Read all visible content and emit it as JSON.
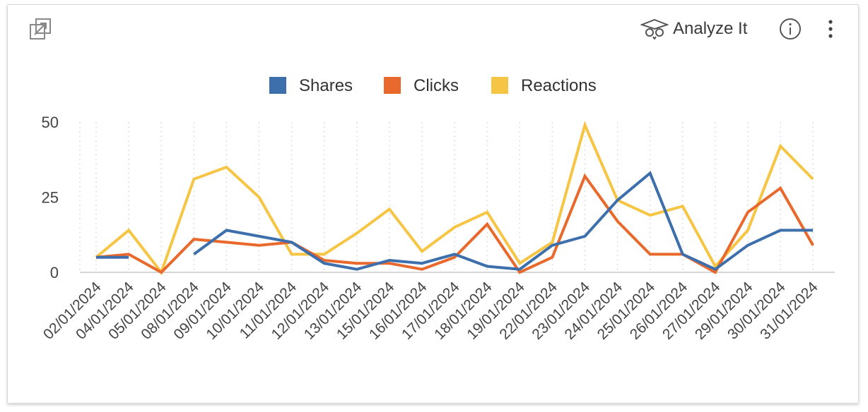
{
  "toolbar": {
    "expand_icon": "expand-icon",
    "analyze_label": "Analyze It",
    "analyze_icon": "owl-graduation-icon",
    "info_icon": "info-icon",
    "more_icon": "kebab-menu-icon"
  },
  "colors": {
    "shares": "#3d6fad",
    "clicks": "#e8692b",
    "reactions": "#f6c544",
    "axis": "#c8c8c8",
    "grid": "#d6d6d6"
  },
  "chart_data": {
    "type": "line",
    "title": "",
    "xlabel": "",
    "ylabel": "",
    "ylim": [
      0,
      50
    ],
    "yticks": [
      0,
      25,
      50
    ],
    "grid": "vertical dotted",
    "legend": "top-center",
    "categories": [
      "02/01/2024",
      "04/01/2024",
      "05/01/2024",
      "08/01/2024",
      "09/01/2024",
      "10/01/2024",
      "11/01/2024",
      "12/01/2024",
      "13/01/2024",
      "15/01/2024",
      "16/01/2024",
      "17/01/2024",
      "18/01/2024",
      "19/01/2024",
      "22/01/2024",
      "23/01/2024",
      "24/01/2024",
      "25/01/2024",
      "26/01/2024",
      "27/01/2024",
      "29/01/2024",
      "30/01/2024",
      "31/01/2024"
    ],
    "series": [
      {
        "name": "Shares",
        "color": "#3d6fad",
        "values": [
          5,
          5,
          null,
          6,
          14,
          12,
          10,
          3,
          1,
          4,
          3,
          6,
          2,
          1,
          9,
          12,
          24,
          33,
          6,
          1,
          9,
          14,
          14
        ]
      },
      {
        "name": "Clicks",
        "color": "#e8692b",
        "values": [
          5,
          6,
          0,
          11,
          10,
          9,
          10,
          4,
          3,
          3,
          1,
          5,
          16,
          0,
          5,
          32,
          17,
          6,
          6,
          0,
          20,
          28,
          9
        ]
      },
      {
        "name": "Reactions",
        "color": "#f6c544",
        "values": [
          5,
          14,
          0,
          31,
          35,
          25,
          6,
          6,
          13,
          21,
          7,
          15,
          20,
          3,
          10,
          49,
          24,
          19,
          22,
          2,
          14,
          42,
          31
        ]
      }
    ]
  }
}
